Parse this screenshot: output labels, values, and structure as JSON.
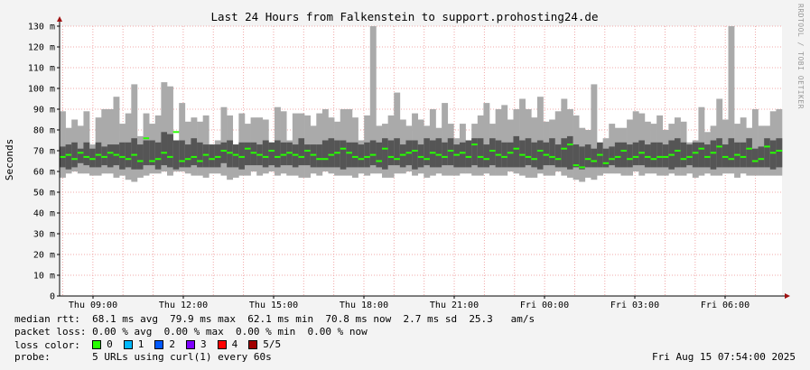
{
  "chart_data": {
    "type": "bar",
    "title": "Last 24 Hours from Falkenstein to support.prohosting24.de",
    "ylabel": "Seconds",
    "xlabel": "",
    "ylim": [
      0,
      130
    ],
    "y_ticks": [
      "0",
      "10 m",
      "20 m",
      "30 m",
      "40 m",
      "50 m",
      "60 m",
      "70 m",
      "80 m",
      "90 m",
      "100 m",
      "110 m",
      "120 m",
      "130 m"
    ],
    "x_ticks": [
      "Thu 09:00",
      "Thu 12:00",
      "Thu 15:00",
      "Thu 18:00",
      "Thu 21:00",
      "Fri 00:00",
      "Fri 03:00",
      "Fri 06:00"
    ],
    "grid": true,
    "series": [
      {
        "name": "median rtt",
        "color": "#00e000",
        "values": [
          67,
          68,
          66,
          69,
          67,
          66,
          68,
          67,
          69,
          68,
          67,
          66,
          68,
          65,
          76,
          65,
          66,
          69,
          67,
          79,
          65,
          66,
          67,
          65,
          68,
          66,
          67,
          70,
          69,
          68,
          67,
          71,
          69,
          68,
          67,
          70,
          67,
          68,
          69,
          68,
          67,
          70,
          68,
          66,
          66,
          68,
          69,
          71,
          69,
          67,
          66,
          67,
          68,
          65,
          71,
          67,
          66,
          68,
          69,
          70,
          67,
          66,
          69,
          68,
          67,
          70,
          68,
          69,
          67,
          73,
          67,
          66,
          70,
          68,
          67,
          69,
          71,
          68,
          67,
          66,
          70,
          68,
          67,
          66,
          71,
          73,
          63,
          62,
          66,
          65,
          68,
          64,
          66,
          67,
          70,
          66,
          67,
          69,
          67,
          66,
          67,
          67,
          68,
          70,
          66,
          67,
          69,
          71,
          67,
          69,
          72,
          67,
          66,
          68,
          67,
          71,
          65,
          66,
          72,
          69,
          70
        ]
      }
    ],
    "envelope_max": [
      89,
      81,
      85,
      82,
      89,
      73,
      86,
      90,
      90,
      96,
      83,
      88,
      102,
      77,
      88,
      83,
      87,
      103,
      101,
      74,
      93,
      84,
      86,
      84,
      87,
      73,
      75,
      91,
      87,
      73,
      88,
      83,
      86,
      86,
      85,
      74,
      91,
      89,
      75,
      88,
      88,
      87,
      82,
      88,
      90,
      86,
      84,
      90,
      90,
      86,
      75,
      87,
      130,
      82,
      83,
      87,
      98,
      85,
      82,
      88,
      85,
      82,
      90,
      81,
      93,
      83,
      76,
      83,
      75,
      83,
      87,
      93,
      83,
      90,
      92,
      85,
      90,
      95,
      90,
      86,
      96,
      84,
      85,
      89,
      95,
      90,
      87,
      81,
      80,
      102,
      72,
      76,
      83,
      81,
      81,
      85,
      89,
      88,
      84,
      83,
      87,
      80,
      83,
      86,
      84,
      74,
      75,
      91,
      79,
      82,
      95,
      85,
      130,
      83,
      86,
      81,
      90,
      82,
      82,
      89,
      90
    ],
    "envelope_min": [
      57,
      59,
      60,
      59,
      59,
      58,
      58,
      59,
      59,
      57,
      58,
      56,
      55,
      57,
      58,
      59,
      59,
      60,
      58,
      60,
      60,
      59,
      58,
      58,
      57,
      59,
      59,
      58,
      56,
      57,
      58,
      58,
      60,
      58,
      59,
      60,
      58,
      59,
      58,
      58,
      57,
      57,
      59,
      58,
      60,
      59,
      58,
      58,
      58,
      57,
      59,
      58,
      59,
      59,
      57,
      57,
      59,
      59,
      60,
      58,
      59,
      57,
      58,
      59,
      58,
      58,
      58,
      59,
      59,
      58,
      58,
      59,
      58,
      58,
      58,
      60,
      59,
      58,
      57,
      57,
      59,
      58,
      58,
      60,
      58,
      57,
      56,
      55,
      57,
      56,
      58,
      59,
      59,
      59,
      58,
      58,
      60,
      58,
      59,
      59,
      58,
      58,
      59,
      58,
      58,
      59,
      57,
      58,
      59,
      58,
      58,
      59,
      59,
      57,
      59,
      58,
      58,
      58,
      58,
      58,
      58
    ],
    "iqr_low": [
      62,
      61,
      62,
      64,
      63,
      62,
      62,
      63,
      62,
      63,
      61,
      62,
      61,
      61,
      63,
      63,
      61,
      63,
      62,
      61,
      62,
      62,
      63,
      62,
      62,
      62,
      62,
      64,
      62,
      62,
      61,
      63,
      63,
      63,
      62,
      63,
      62,
      63,
      63,
      62,
      63,
      63,
      62,
      62,
      62,
      62,
      62,
      61,
      62,
      62,
      62,
      62,
      63,
      62,
      61,
      63,
      63,
      62,
      63,
      61,
      62,
      63,
      62,
      62,
      63,
      63,
      62,
      62,
      62,
      63,
      62,
      62,
      63,
      62,
      62,
      62,
      62,
      62,
      63,
      62,
      61,
      63,
      63,
      62,
      62,
      61,
      62,
      61,
      62,
      62,
      62,
      62,
      63,
      62,
      62,
      62,
      63,
      63,
      62,
      62,
      62,
      62,
      61,
      62,
      62,
      63,
      62,
      62,
      62,
      61,
      62,
      62,
      62,
      62,
      62,
      62,
      62,
      62,
      62,
      61,
      62
    ],
    "iqr_high": [
      72,
      73,
      74,
      71,
      74,
      71,
      74,
      72,
      73,
      73,
      74,
      74,
      76,
      73,
      75,
      75,
      74,
      79,
      78,
      75,
      75,
      73,
      76,
      74,
      73,
      73,
      73,
      74,
      75,
      73,
      74,
      74,
      74,
      73,
      75,
      74,
      75,
      74,
      74,
      73,
      76,
      73,
      73,
      73,
      75,
      76,
      75,
      75,
      74,
      74,
      73,
      74,
      75,
      74,
      76,
      75,
      76,
      73,
      75,
      75,
      73,
      76,
      75,
      76,
      74,
      76,
      73,
      74,
      75,
      76,
      76,
      73,
      76,
      75,
      74,
      74,
      77,
      75,
      76,
      74,
      75,
      74,
      76,
      73,
      76,
      77,
      73,
      72,
      73,
      71,
      74,
      71,
      72,
      74,
      74,
      73,
      74,
      75,
      73,
      74,
      74,
      73,
      75,
      76,
      74,
      73,
      74,
      74,
      73,
      75,
      76,
      73,
      76,
      74,
      74,
      76,
      71,
      72,
      76,
      75,
      76
    ]
  },
  "axis": {
    "title": "Last 24 Hours from Falkenstein to support.prohosting24.de",
    "ylabel": "Seconds"
  },
  "stats": {
    "line1": "median rtt:  68.1 ms avg  79.9 ms max  62.1 ms min  70.8 ms now  2.7 ms sd  25.3   am/s",
    "line2": "packet loss: 0.00 % avg  0.00 % max  0.00 % min  0.00 % now",
    "loss_label": "loss color:",
    "probe": "probe:       5 URLs using curl(1) every 60s",
    "timestamp": "Fri Aug 15 07:54:00 2025"
  },
  "loss_legend": [
    {
      "label": "0",
      "color": "#26ff00"
    },
    {
      "label": "1",
      "color": "#00b8ff"
    },
    {
      "label": "2",
      "color": "#0059ff"
    },
    {
      "label": "3",
      "color": "#7e00ff"
    },
    {
      "label": "4",
      "color": "#ff0000"
    },
    {
      "label": "5/5",
      "color": "#a10000"
    }
  ],
  "watermark": "RRDTOOL / TOBI OETIKER",
  "colors": {
    "envelope": "#aaaaaa",
    "iqr": "#555555",
    "median": "#26ff00",
    "grid": "#f0a8a8",
    "axis_arrow": "#a01010"
  }
}
